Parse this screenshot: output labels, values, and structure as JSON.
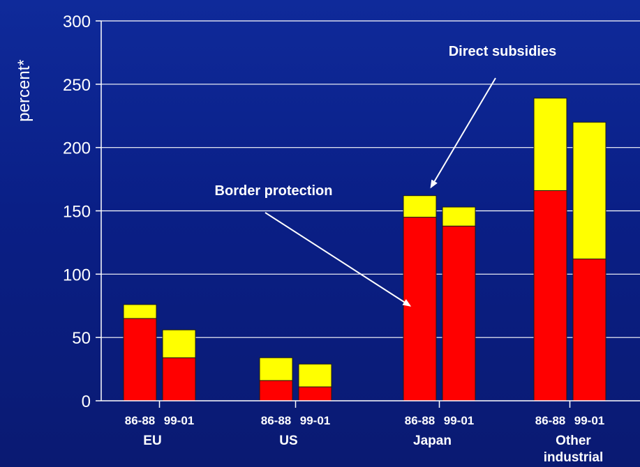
{
  "chart_data": {
    "type": "bar",
    "stacked": true,
    "ylabel": "percent*",
    "ylim": [
      0,
      300
    ],
    "yticks": [
      0,
      50,
      100,
      150,
      200,
      250,
      300
    ],
    "grid": true,
    "groups": [
      {
        "name": "EU",
        "label_lines": [
          "EU"
        ],
        "categories": [
          "86-88",
          "99-01"
        ]
      },
      {
        "name": "US",
        "label_lines": [
          "US"
        ],
        "categories": [
          "86-88",
          "99-01"
        ]
      },
      {
        "name": "Japan",
        "label_lines": [
          "Japan"
        ],
        "categories": [
          "86-88",
          "99-01"
        ]
      },
      {
        "name": "Other industrial",
        "label_lines": [
          "Other",
          "industrial"
        ],
        "categories": [
          "86-88",
          "99-01"
        ]
      }
    ],
    "series": [
      {
        "name": "Border protection",
        "color": "#ff0000",
        "values": [
          65,
          34,
          16,
          11,
          145,
          138,
          166,
          112
        ]
      },
      {
        "name": "Direct subsidies",
        "color": "#ffff00",
        "values": [
          11,
          22,
          18,
          18,
          17,
          15,
          73,
          108
        ]
      }
    ],
    "annotations": [
      {
        "text": "Direct subsidies",
        "series": "Direct subsidies"
      },
      {
        "text": "Border protection",
        "series": "Border protection"
      }
    ]
  }
}
